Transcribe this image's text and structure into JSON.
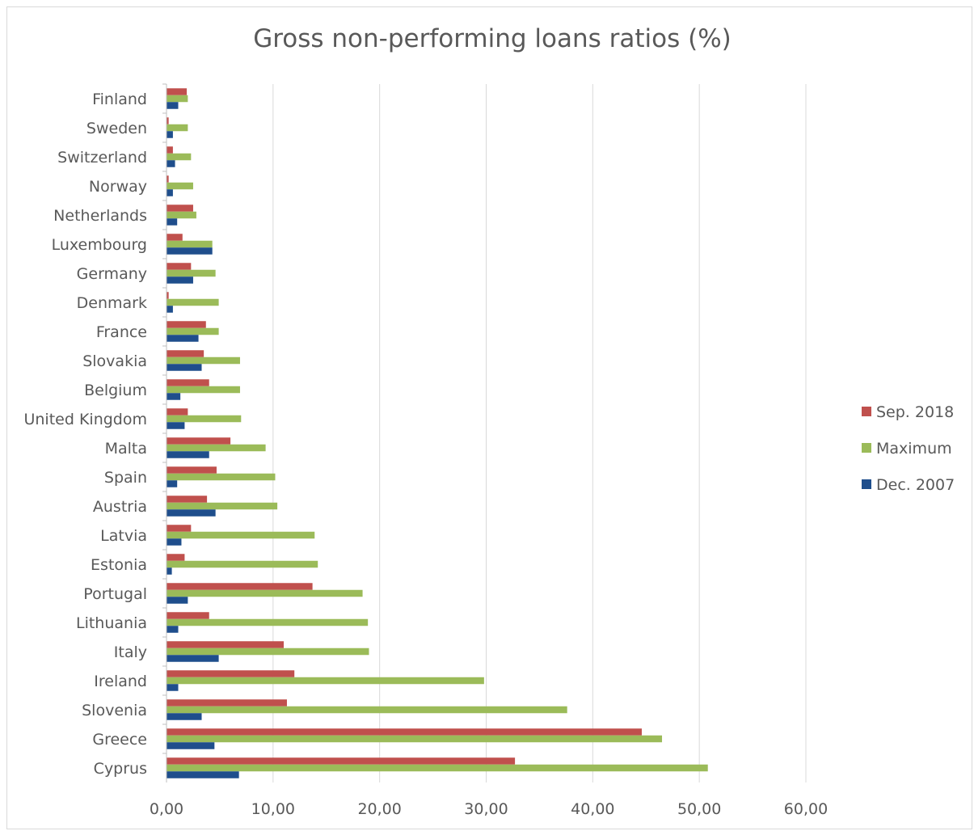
{
  "chart_data": {
    "type": "bar",
    "orientation": "horizontal",
    "title": "Gross non-performing loans ratios (%)",
    "xlabel": "",
    "ylabel": "",
    "xlim": [
      0,
      60
    ],
    "x_ticks": [
      "0,00",
      "10,00",
      "20,00",
      "30,00",
      "40,00",
      "50,00",
      "60,00"
    ],
    "grid": "vertical",
    "legend_position": "right",
    "categories": [
      "Finland",
      "Sweden",
      "Switzerland",
      "Norway",
      "Netherlands",
      "Luxembourg",
      "Germany",
      "Denmark",
      "France",
      "Slovakia",
      "Belgium",
      "United Kingdom",
      "Malta",
      "Spain",
      "Austria",
      "Latvia",
      "Estonia",
      "Portugal",
      "Lithuania",
      "Italy",
      "Ireland",
      "Slovenia",
      "Greece",
      "Cyprus"
    ],
    "series": [
      {
        "name": "Sep. 2018",
        "color": "#c0504d",
        "values": [
          1.9,
          0.2,
          0.6,
          0.2,
          2.5,
          1.5,
          2.3,
          0.2,
          3.7,
          3.5,
          4.0,
          2.0,
          6.0,
          4.7,
          3.8,
          2.3,
          1.7,
          13.7,
          4.0,
          11.0,
          12.0,
          11.3,
          44.6,
          32.7
        ]
      },
      {
        "name": "Maximum",
        "color": "#9bbb59",
        "values": [
          2.0,
          2.0,
          2.3,
          2.5,
          2.8,
          4.3,
          4.6,
          4.9,
          4.9,
          6.9,
          6.9,
          7.0,
          9.3,
          10.2,
          10.4,
          13.9,
          14.2,
          18.4,
          18.9,
          19.0,
          29.8,
          37.6,
          46.5,
          50.8
        ]
      },
      {
        "name": "Dec. 2007",
        "color": "#1f4e8c",
        "values": [
          1.1,
          0.6,
          0.8,
          0.6,
          1.0,
          4.3,
          2.5,
          0.6,
          3.0,
          3.3,
          1.3,
          1.7,
          4.0,
          1.0,
          4.6,
          1.4,
          0.5,
          2.0,
          1.1,
          4.9,
          1.1,
          3.3,
          4.5,
          6.8
        ]
      }
    ],
    "legend": [
      {
        "label": "Sep. 2018",
        "color": "#c0504d"
      },
      {
        "label": "Maximum",
        "color": "#9bbb59"
      },
      {
        "label": "Dec. 2007",
        "color": "#1f4e8c"
      }
    ]
  }
}
